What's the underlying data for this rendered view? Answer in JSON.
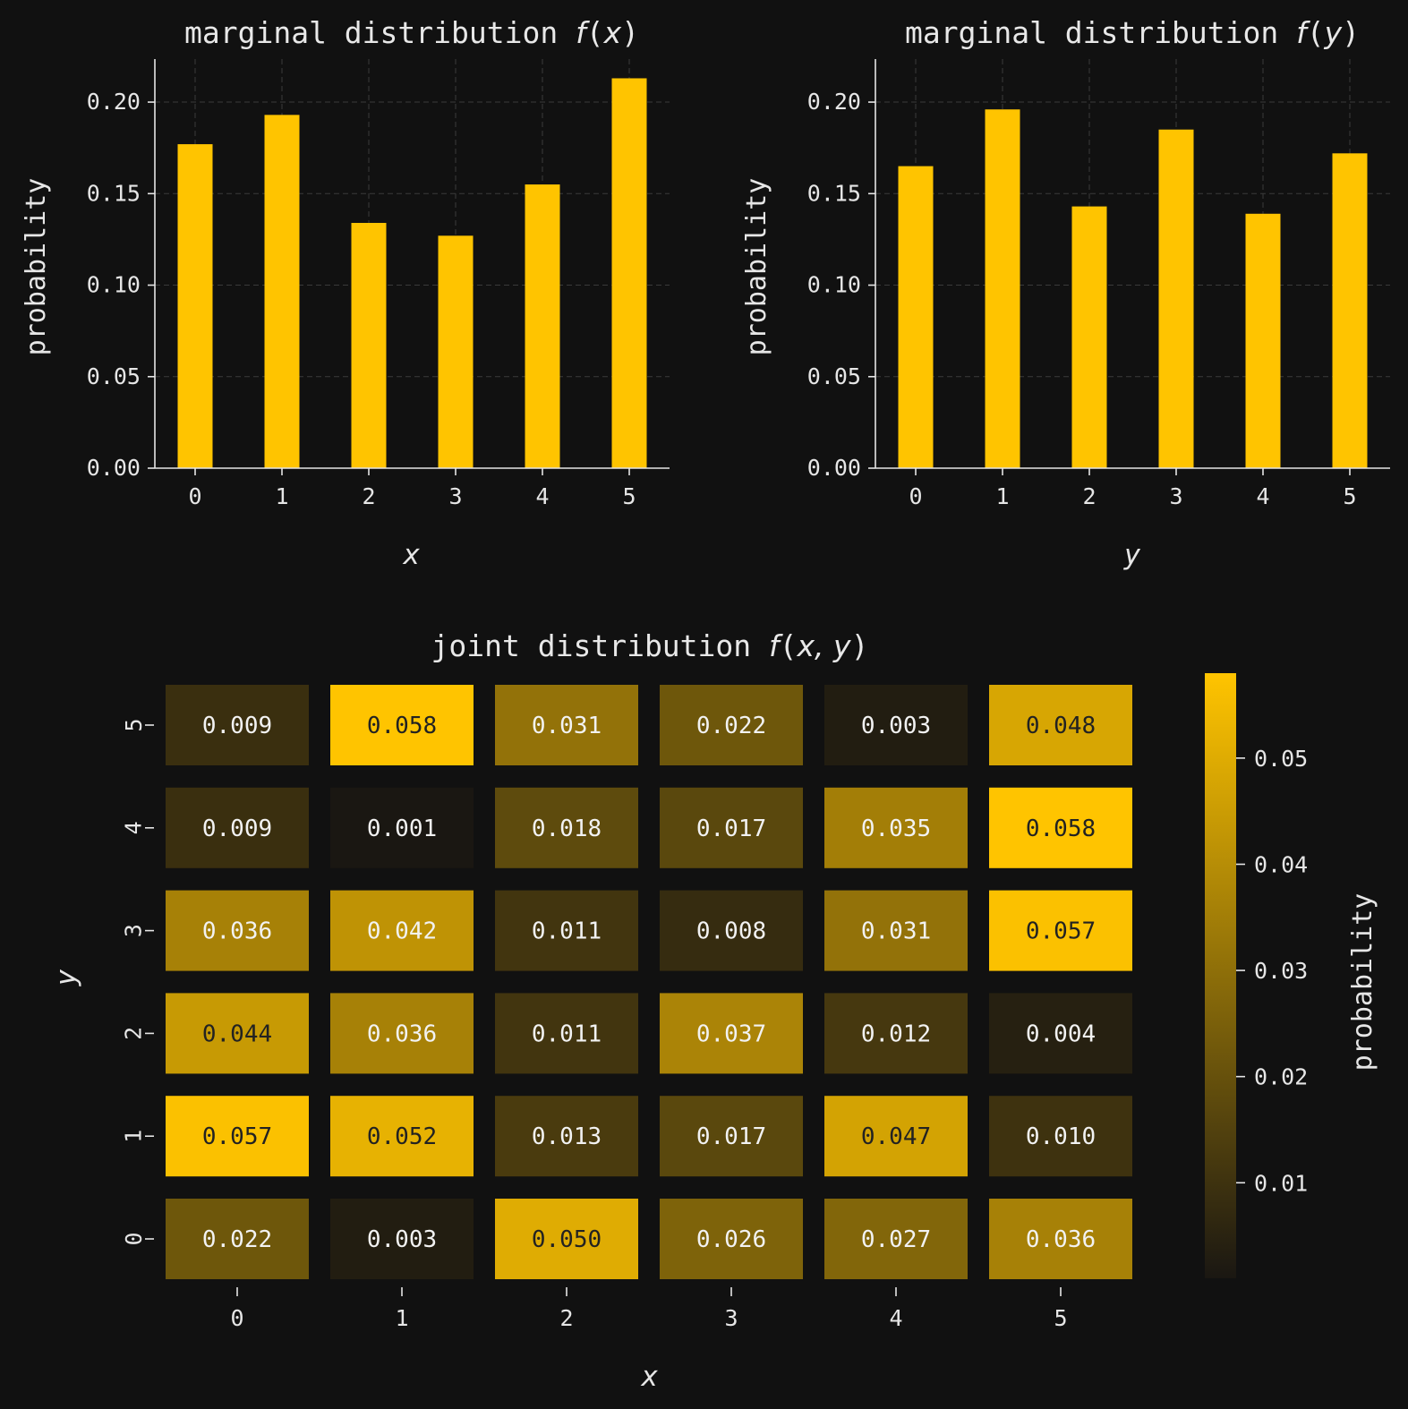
{
  "chart_data": [
    {
      "type": "bar",
      "title_prefix": "marginal distribution ",
      "title_func": "f",
      "title_var": "x",
      "xlabel": "x",
      "ylabel": "probability",
      "categories": [
        "0",
        "1",
        "2",
        "3",
        "4",
        "5"
      ],
      "values": [
        0.177,
        0.193,
        0.134,
        0.127,
        0.155,
        0.213
      ],
      "ylim": [
        0,
        0.2235
      ],
      "yticks": [
        "0.00",
        "0.05",
        "0.10",
        "0.15",
        "0.20"
      ],
      "grid": true,
      "color": "#ffc400"
    },
    {
      "type": "bar",
      "title_prefix": "marginal distribution ",
      "title_func": "f",
      "title_var": "y",
      "xlabel": "y",
      "ylabel": "probability",
      "categories": [
        "0",
        "1",
        "2",
        "3",
        "4",
        "5"
      ],
      "values": [
        0.165,
        0.196,
        0.143,
        0.185,
        0.139,
        0.172
      ],
      "ylim": [
        0,
        0.2235
      ],
      "yticks": [
        "0.00",
        "0.05",
        "0.10",
        "0.15",
        "0.20"
      ],
      "grid": true,
      "color": "#ffc400"
    },
    {
      "type": "heatmap",
      "title_prefix": "joint distribution ",
      "title_func": "f",
      "title_var": "x, y",
      "xlabel": "x",
      "ylabel": "y",
      "x_categories": [
        "0",
        "1",
        "2",
        "3",
        "4",
        "5"
      ],
      "y_categories": [
        "0",
        "1",
        "2",
        "3",
        "4",
        "5"
      ],
      "rows": [
        {
          "y": "5",
          "cells": [
            "0.009",
            "0.058",
            "0.031",
            "0.022",
            "0.003",
            "0.048"
          ]
        },
        {
          "y": "4",
          "cells": [
            "0.009",
            "0.001",
            "0.018",
            "0.017",
            "0.035",
            "0.058"
          ]
        },
        {
          "y": "3",
          "cells": [
            "0.036",
            "0.042",
            "0.011",
            "0.008",
            "0.031",
            "0.057"
          ]
        },
        {
          "y": "2",
          "cells": [
            "0.044",
            "0.036",
            "0.011",
            "0.037",
            "0.012",
            "0.004"
          ]
        },
        {
          "y": "1",
          "cells": [
            "0.057",
            "0.052",
            "0.013",
            "0.017",
            "0.047",
            "0.010"
          ]
        },
        {
          "y": "0",
          "cells": [
            "0.022",
            "0.003",
            "0.050",
            "0.026",
            "0.027",
            "0.036"
          ]
        }
      ],
      "colorbar": {
        "label": "probability",
        "ticks": [
          "0.01",
          "0.02",
          "0.03",
          "0.04",
          "0.05"
        ],
        "range": [
          0.001,
          0.058
        ],
        "color_low": "#1a1712",
        "color_high": "#ffc400"
      }
    }
  ]
}
